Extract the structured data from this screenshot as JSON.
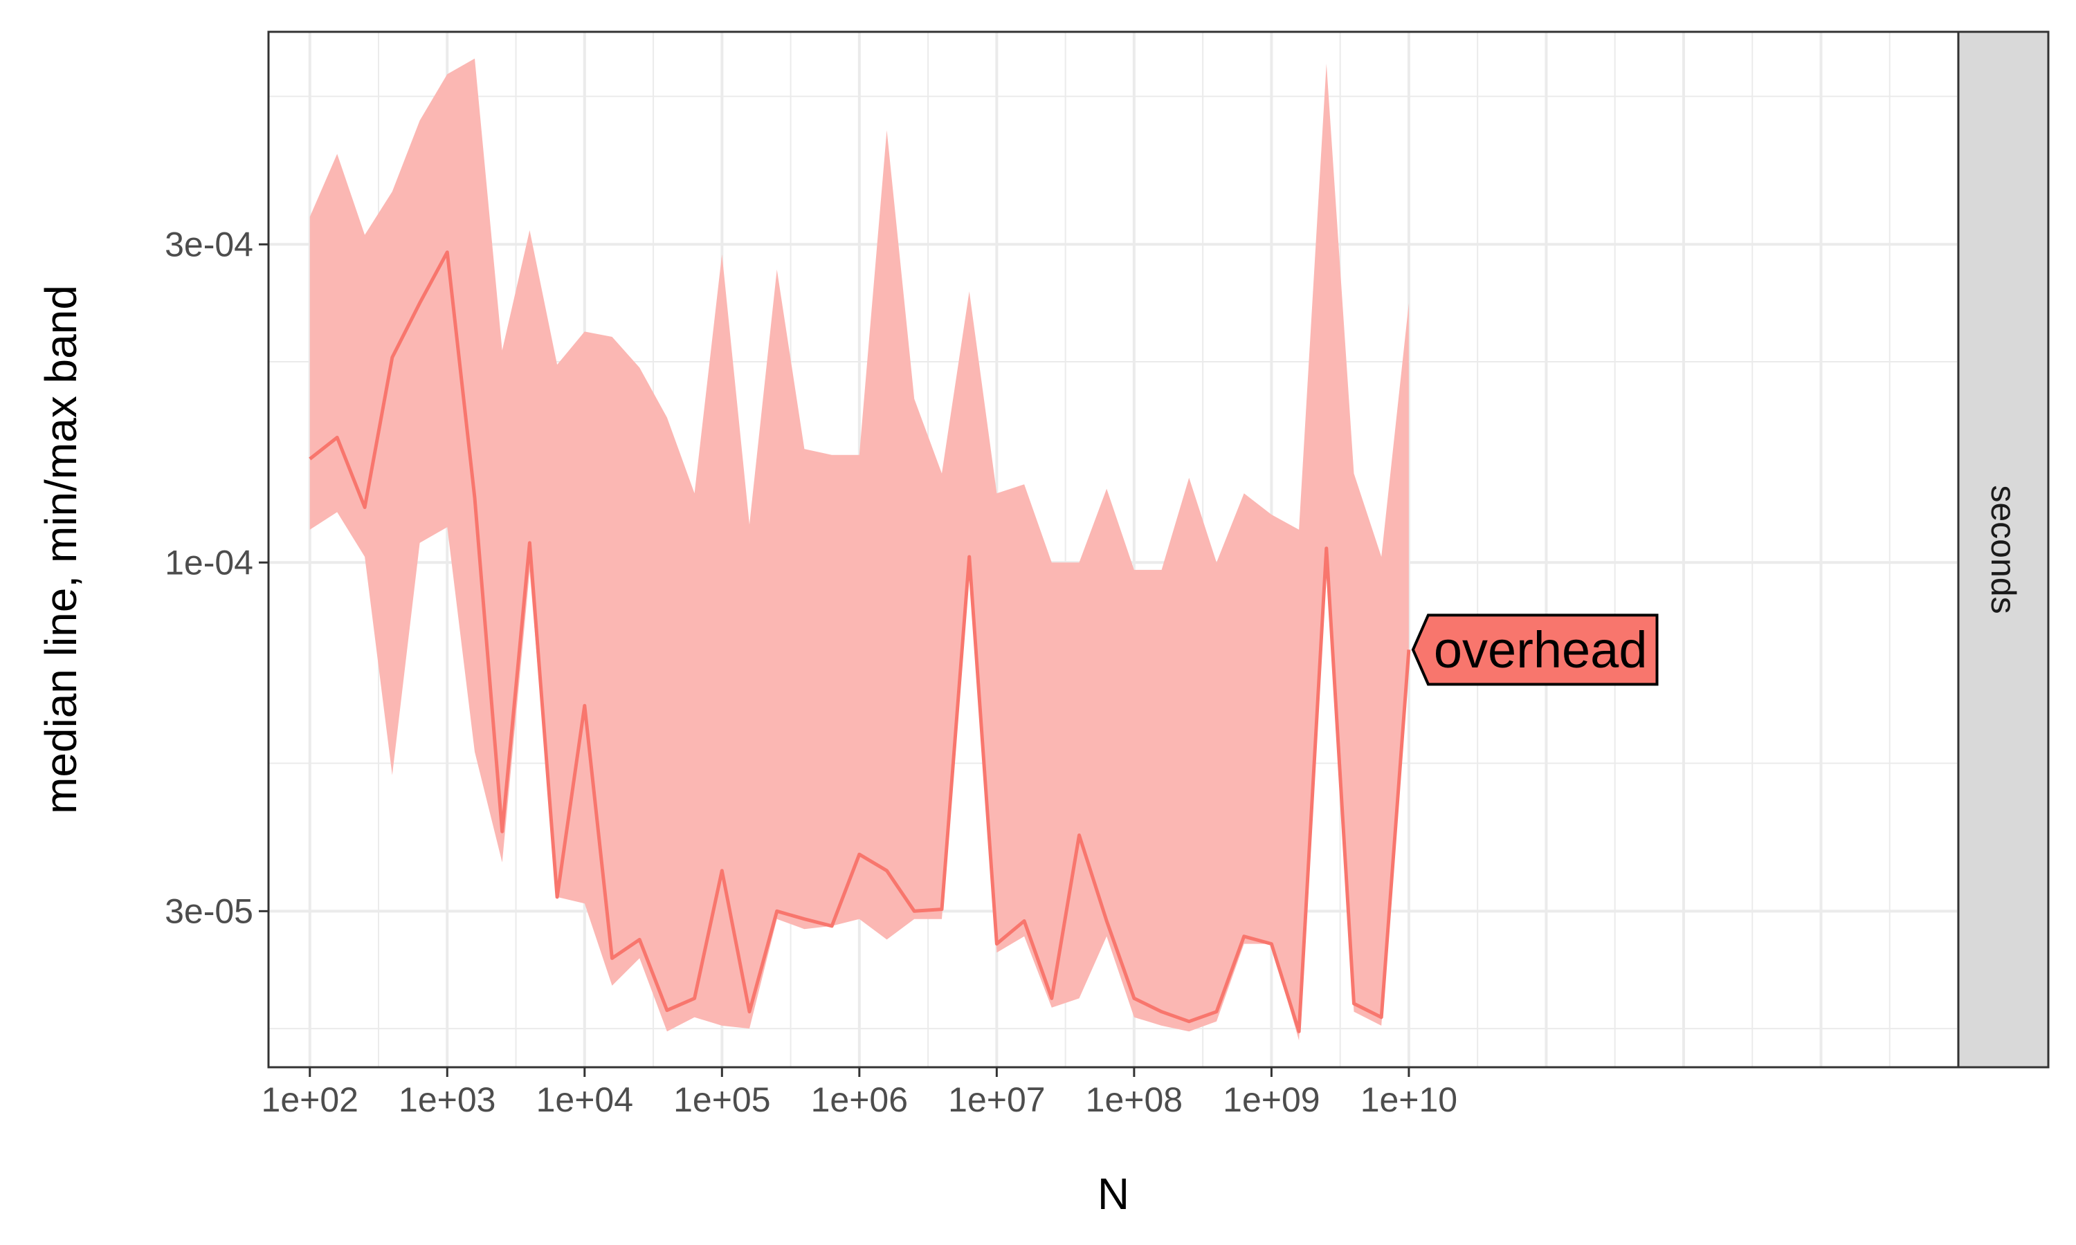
{
  "chart_data": {
    "type": "area",
    "title": "",
    "xlabel": "N",
    "ylabel": "median line, min/max band",
    "x_scale": "log10",
    "y_scale": "log10",
    "xlim": [
      50,
      100000000000000
    ],
    "ylim": [
      1.75e-05,
      0.000625
    ],
    "grid": true,
    "legend": "none",
    "facet_label": "seconds",
    "x_ticks": [
      {
        "value": 100,
        "label": "1e+02"
      },
      {
        "value": 1000,
        "label": "1e+03"
      },
      {
        "value": 10000,
        "label": "1e+04"
      },
      {
        "value": 100000,
        "label": "1e+05"
      },
      {
        "value": 1000000,
        "label": "1e+06"
      },
      {
        "value": 10000000,
        "label": "1e+07"
      },
      {
        "value": 100000000,
        "label": "1e+08"
      },
      {
        "value": 1000000000,
        "label": "1e+09"
      },
      {
        "value": 10000000000,
        "label": "1e+10"
      }
    ],
    "y_ticks": [
      {
        "value": 3e-05,
        "label": "3e-05"
      },
      {
        "value": 0.0001,
        "label": "1e-04"
      },
      {
        "value": 0.0003,
        "label": "3e-04"
      }
    ],
    "y_minor_ticks": [
      2e-05,
      5e-05,
      0.0002,
      0.0005
    ],
    "series": [
      {
        "name": "overhead",
        "color": "#F8766D",
        "band_color": "#FBB7B3",
        "x": [
          100,
          158,
          251,
          398,
          631,
          1000,
          1585,
          2512,
          3981,
          6310,
          10000,
          15849,
          25119,
          39811,
          63096,
          100000,
          158489,
          251189,
          398107,
          630957,
          1000000,
          1584893,
          2511886,
          3981072,
          6309573,
          10000000,
          15848932,
          25118864,
          39810717,
          63095734,
          100000000,
          158489319,
          251188643,
          398107171,
          630957344,
          1000000000,
          1584893192,
          2511886432,
          3981071706,
          6309573445,
          10000000000
        ],
        "median": [
          0.000143,
          0.000154,
          0.000121,
          0.000203,
          0.000245,
          0.000292,
          0.000125,
          3.95e-05,
          0.000107,
          3.15e-05,
          6.1e-05,
          2.55e-05,
          2.72e-05,
          2.13e-05,
          2.22e-05,
          3.45e-05,
          2.12e-05,
          3e-05,
          2.92e-05,
          2.85e-05,
          3.65e-05,
          3.45e-05,
          3e-05,
          3.02e-05,
          0.000102,
          2.68e-05,
          2.9e-05,
          2.22e-05,
          3.9e-05,
          2.9e-05,
          2.22e-05,
          2.12e-05,
          2.05e-05,
          2.12e-05,
          2.75e-05,
          2.68e-05,
          1.98e-05,
          0.000105,
          2.18e-05,
          2.08e-05,
          7.4e-05
        ],
        "min": [
          0.000112,
          0.000119,
          0.000102,
          4.8e-05,
          0.000107,
          0.000113,
          5.2e-05,
          3.55e-05,
          9.7e-05,
          3.15e-05,
          3.08e-05,
          2.32e-05,
          2.55e-05,
          1.98e-05,
          2.08e-05,
          2.02e-05,
          2e-05,
          2.92e-05,
          2.82e-05,
          2.85e-05,
          2.92e-05,
          2.72e-05,
          2.92e-05,
          2.92e-05,
          0.000102,
          2.6e-05,
          2.75e-05,
          2.15e-05,
          2.22e-05,
          2.75e-05,
          2.08e-05,
          2.02e-05,
          1.98e-05,
          2.05e-05,
          2.68e-05,
          2.68e-05,
          1.92e-05,
          9.8e-05,
          2.12e-05,
          2.02e-05,
          7.4e-05
        ],
        "max": [
          0.00033,
          0.00041,
          0.00031,
          0.00036,
          0.00046,
          0.00054,
          0.00057,
          0.000208,
          0.000315,
          0.000198,
          0.000222,
          0.000218,
          0.000196,
          0.000165,
          0.000127,
          0.00029,
          0.000114,
          0.000275,
          0.000148,
          0.000145,
          0.000145,
          0.000445,
          0.000176,
          0.000136,
          0.000255,
          0.000127,
          0.000131,
          0.0001,
          0.0001,
          0.000129,
          9.75e-05,
          9.75e-05,
          0.000134,
          0.0001,
          0.000127,
          0.000118,
          0.000112,
          0.00056,
          0.000136,
          0.000102,
          0.000245
        ]
      }
    ],
    "annotations": [
      {
        "text": "overhead",
        "x": 10000000000,
        "y": 7.4e-05,
        "fill": "#F8766D"
      }
    ]
  }
}
